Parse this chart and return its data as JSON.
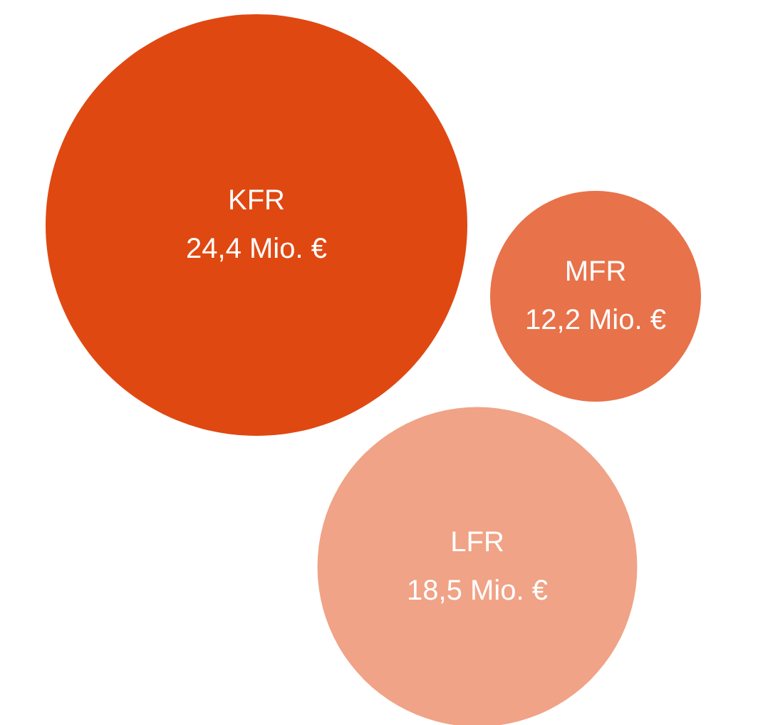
{
  "chart_data": {
    "type": "other",
    "categories": [
      "KFR",
      "MFR",
      "LFR"
    ],
    "values": [
      24.4,
      12.2,
      18.5
    ],
    "value_labels": [
      "24,4 Mio. €",
      "12,2 Mio. €",
      "18,5 Mio. €"
    ],
    "colors": [
      "#e04812",
      "#e8724a",
      "#f0a386"
    ]
  }
}
